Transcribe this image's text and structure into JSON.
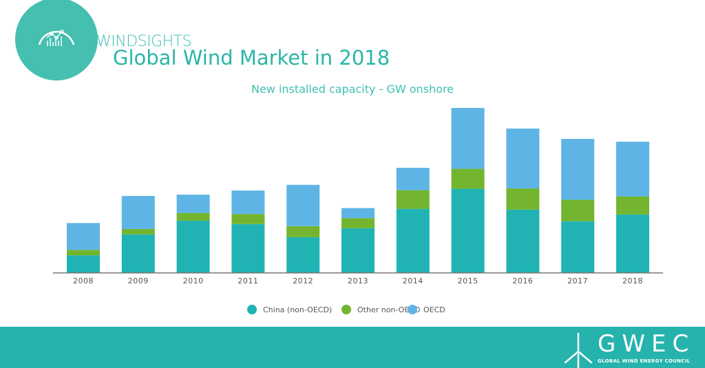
{
  "header": {
    "brand": "WINDSIGHTS",
    "title": "Global Wind Market in 2018"
  },
  "chart_data": {
    "type": "bar",
    "stacked": true,
    "title": "New installed capacity - GW onshore",
    "xlabel": "",
    "ylabel": "",
    "ylim": [
      0,
      66
    ],
    "grid": false,
    "legend_position": "bottom",
    "categories": [
      "2008",
      "2009",
      "2010",
      "2011",
      "2012",
      "2013",
      "2014",
      "2015",
      "2016",
      "2017",
      "2018"
    ],
    "series": [
      {
        "name": "China (non-OECD)",
        "color": "#21b3b3",
        "values": [
          6.8,
          14.9,
          20.2,
          18.9,
          13.8,
          17.3,
          24.8,
          32.6,
          24.5,
          20.0,
          22.6
        ]
      },
      {
        "name": "Other non-OECD",
        "color": "#73b52e",
        "values": [
          2.1,
          2.1,
          3.0,
          3.9,
          4.3,
          3.9,
          7.2,
          7.7,
          8.2,
          8.3,
          7.0
        ]
      },
      {
        "name": "OECD",
        "color": "#5eb5e5",
        "values": [
          10.4,
          12.8,
          7.1,
          9.1,
          16.0,
          3.9,
          8.7,
          23.6,
          23.2,
          23.6,
          21.2
        ]
      }
    ]
  },
  "footer": {
    "logo_text": "GWEC",
    "logo_subtext": "GLOBAL WIND ENERGY COUNCIL",
    "background": "#26b3ad"
  },
  "icons": {
    "logo": "bar-chart-arc-icon",
    "footer_logo": "wind-turbine-icon"
  }
}
